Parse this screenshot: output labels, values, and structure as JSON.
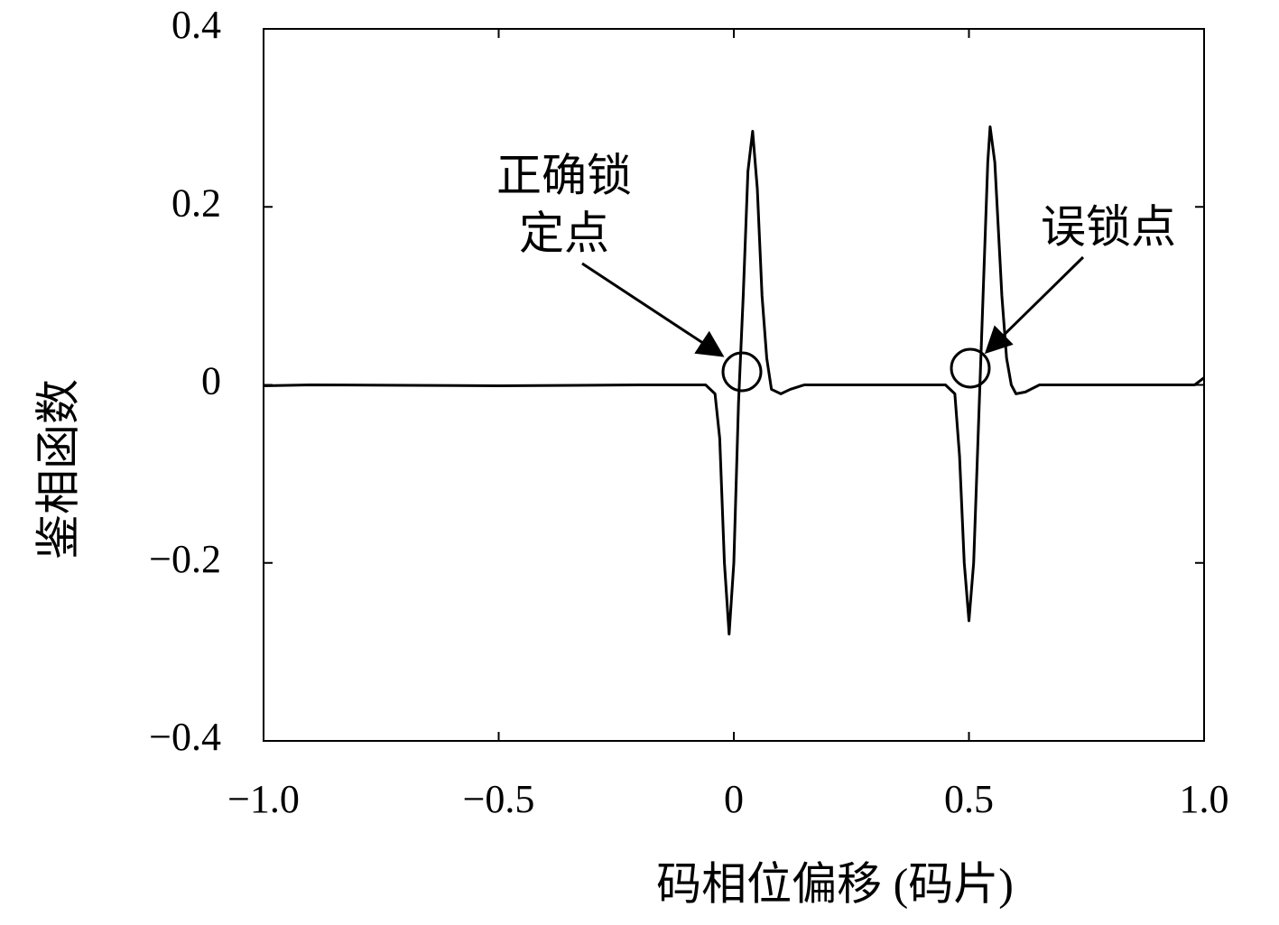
{
  "chart_data": {
    "type": "line",
    "xlabel": "码相位偏移 (码片)",
    "ylabel": "鉴相函数",
    "annotations": [
      [
        "正确锁",
        "定点"
      ],
      [
        "误锁点"
      ]
    ],
    "xlim": [
      -1.0,
      1.0
    ],
    "ylim": [
      -0.4,
      0.4
    ],
    "xticks": [
      {
        "value": -1.0,
        "label": "−1.0"
      },
      {
        "value": -0.5,
        "label": "−0.5"
      },
      0,
      0.5,
      {
        "value": 1.0,
        "label": "1.0"
      }
    ],
    "yticks": [
      {
        "value": -0.4,
        "label": "−0.4"
      },
      {
        "value": -0.2,
        "label": "−0.2"
      },
      0,
      0.2,
      0.4
    ],
    "grid": false,
    "x": [
      -1.0,
      -0.9,
      -0.5,
      -0.2,
      -0.06,
      -0.04,
      -0.03,
      -0.02,
      -0.01,
      0,
      0.01,
      0.02,
      0.03,
      0.04,
      0.05,
      0.06,
      0.07,
      0.08,
      0.1,
      0.12,
      0.15,
      0.45,
      0.47,
      0.48,
      0.49,
      0.5,
      0.51,
      0.52,
      0.53,
      0.54,
      0.545,
      0.555,
      0.57,
      0.58,
      0.59,
      0.6,
      0.62,
      0.65,
      0.95,
      0.98,
      1.0
    ],
    "series": [
      {
        "color": "#000000",
        "values": [
          -0.001,
          0,
          -0.001,
          0,
          0,
          -0.01,
          -0.06,
          -0.2,
          -0.28,
          -0.2,
          -0.02,
          0.1,
          0.24,
          0.285,
          0.22,
          0.1,
          0.03,
          -0.005,
          -0.01,
          -0.005,
          0,
          0,
          -0.01,
          -0.08,
          -0.2,
          -0.265,
          -0.2,
          -0.05,
          0.1,
          0.25,
          0.29,
          0.25,
          0.1,
          0.03,
          0,
          -0.01,
          -0.008,
          0,
          0,
          0,
          0.008
        ]
      }
    ]
  }
}
